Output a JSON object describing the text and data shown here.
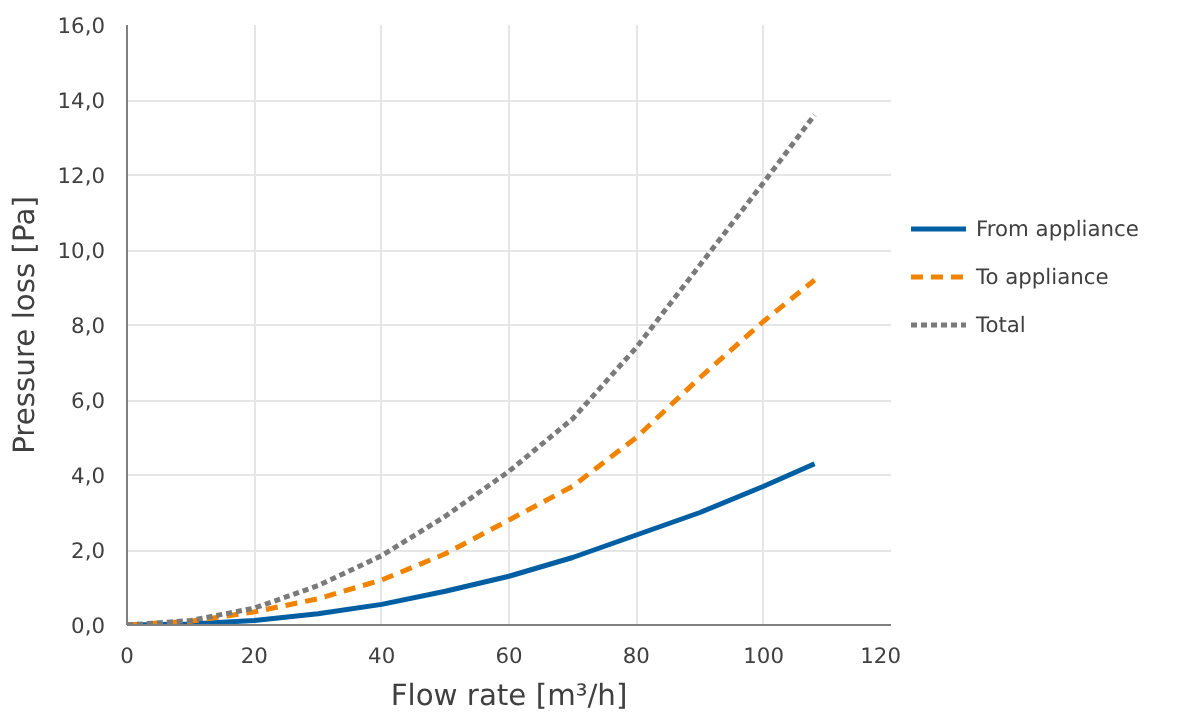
{
  "chart_data": {
    "type": "line",
    "xlabel": "Flow rate [m³/h]",
    "ylabel": "Pressure loss [Pa]",
    "x": [
      0,
      10,
      20,
      30,
      40,
      50,
      60,
      70,
      80,
      90,
      100,
      108
    ],
    "series": [
      {
        "name": "From appliance",
        "color": "#005ea3",
        "line_style": "solid",
        "values": [
          0,
          0.03,
          0.12,
          0.3,
          0.55,
          0.9,
          1.3,
          1.8,
          2.4,
          3.0,
          3.7,
          4.3
        ]
      },
      {
        "name": "To appliance",
        "color": "#f08300",
        "line_style": "dashed",
        "values": [
          0,
          0.1,
          0.35,
          0.7,
          1.2,
          1.9,
          2.8,
          3.7,
          5.0,
          6.6,
          8.1,
          9.2
        ]
      },
      {
        "name": "Total",
        "color": "#7a7a7a",
        "line_style": "dotted",
        "values": [
          0,
          0.12,
          0.45,
          1.05,
          1.85,
          2.9,
          4.1,
          5.5,
          7.4,
          9.6,
          11.8,
          13.6
        ]
      }
    ],
    "xlim": [
      0,
      120
    ],
    "xticks": [
      0,
      20,
      40,
      60,
      80,
      100,
      120
    ],
    "ylim": [
      0,
      16
    ],
    "yticks": [
      {
        "value": 0,
        "label": "0,0"
      },
      {
        "value": 2,
        "label": "2,0"
      },
      {
        "value": 4,
        "label": "4,0"
      },
      {
        "value": 6,
        "label": "6,0"
      },
      {
        "value": 8,
        "label": "8,0"
      },
      {
        "value": 10,
        "label": "10,0"
      },
      {
        "value": 12,
        "label": "12,0"
      },
      {
        "value": 14,
        "label": "14,0"
      },
      {
        "value": 16,
        "label": "16,0"
      }
    ],
    "grid": true,
    "legend": "right"
  }
}
